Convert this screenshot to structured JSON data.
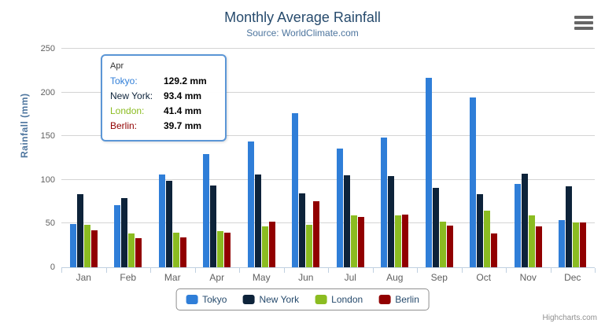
{
  "header": {
    "title": "Monthly Average Rainfall",
    "subtitle": "Source: WorldClimate.com"
  },
  "chart_data": {
    "type": "bar",
    "title": "Monthly Average Rainfall",
    "subtitle": "Source: WorldClimate.com",
    "categories": [
      "Jan",
      "Feb",
      "Mar",
      "Apr",
      "May",
      "Jun",
      "Jul",
      "Aug",
      "Sep",
      "Oct",
      "Nov",
      "Dec"
    ],
    "series": [
      {
        "name": "Tokyo",
        "color": "#2f7ed8",
        "values": [
          49.9,
          71.5,
          106.4,
          129.2,
          144.0,
          176.0,
          135.6,
          148.5,
          216.4,
          194.1,
          95.6,
          54.4
        ]
      },
      {
        "name": "New York",
        "color": "#0d233a",
        "values": [
          83.6,
          78.8,
          98.5,
          93.4,
          106.0,
          84.5,
          105.0,
          104.3,
          91.2,
          83.5,
          106.6,
          92.3
        ]
      },
      {
        "name": "London",
        "color": "#8bbc21",
        "values": [
          48.9,
          38.8,
          39.3,
          41.4,
          47.0,
          48.3,
          59.0,
          59.6,
          52.4,
          65.2,
          59.3,
          51.2
        ]
      },
      {
        "name": "Berlin",
        "color": "#910000",
        "values": [
          42.4,
          33.2,
          34.5,
          39.7,
          52.6,
          75.5,
          57.4,
          60.4,
          47.6,
          39.1,
          46.8,
          51.1
        ]
      }
    ],
    "xlabel": "",
    "ylabel": "Rainfall (mm)",
    "ylim": [
      0,
      250
    ],
    "yticks": [
      0,
      50,
      100,
      150,
      200,
      250
    ],
    "grid": true,
    "legend_position": "bottom"
  },
  "tooltip": {
    "header": "Apr",
    "rows": [
      {
        "name": "Tokyo",
        "label": "Tokyo:",
        "value": "129.2 mm",
        "color": "#2f7ed8"
      },
      {
        "name": "New York",
        "label": "New York:",
        "value": "93.4 mm",
        "color": "#0d233a"
      },
      {
        "name": "London",
        "label": "London:",
        "value": "41.4 mm",
        "color": "#8bbc21"
      },
      {
        "name": "Berlin",
        "label": "Berlin:",
        "value": "39.7 mm",
        "color": "#910000"
      }
    ]
  },
  "credits": "Highcharts.com"
}
